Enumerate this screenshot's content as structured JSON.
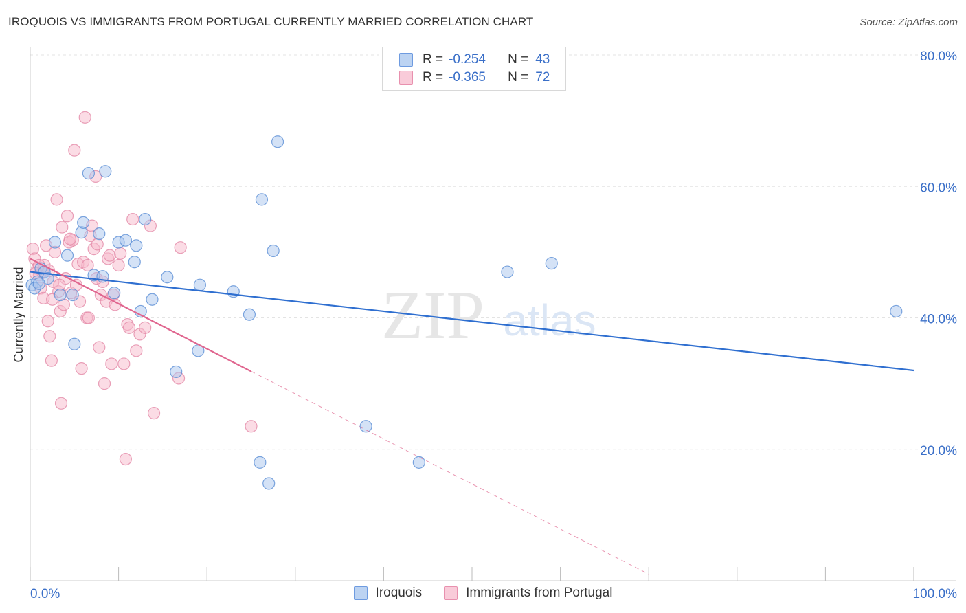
{
  "title": "IROQUOIS VS IMMIGRANTS FROM PORTUGAL CURRENTLY MARRIED CORRELATION CHART",
  "source": "Source: ZipAtlas.com",
  "watermark": {
    "zip": "ZIP",
    "atlas": "atlas"
  },
  "colors": {
    "blue_fill": "#a9c6ee",
    "blue_stroke": "#5b8fd6",
    "blue_line": "#2f6fd0",
    "pink_fill": "#f7b9cc",
    "pink_stroke": "#e48aa8",
    "pink_line": "#e0668f",
    "axis_label": "#3a6fc8",
    "grid": "#e3e3e3"
  },
  "legend": {
    "iroquois": {
      "r_label": "R =",
      "r_value": "-0.254",
      "n_label": "N =",
      "n_value": "43"
    },
    "portugal": {
      "r_label": "R =",
      "r_value": "-0.365",
      "n_label": "N =",
      "n_value": "72"
    }
  },
  "chart_data": {
    "type": "scatter",
    "title": "IROQUOIS VS IMMIGRANTS FROM PORTUGAL CURRENTLY MARRIED CORRELATION CHART",
    "xlabel": "",
    "ylabel": "Currently Married",
    "xlim": [
      0,
      100
    ],
    "ylim": [
      0,
      80
    ],
    "x_tick_labels": [
      "0.0%",
      "100.0%"
    ],
    "y_ticks": [
      20,
      40,
      60,
      80
    ],
    "y_tick_labels": [
      "20.0%",
      "40.0%",
      "60.0%",
      "80.0%"
    ],
    "grid": true,
    "legend_position": "top-center",
    "series": [
      {
        "name": "Iroquois",
        "color": "blue",
        "r": -0.254,
        "n": 43,
        "trend": {
          "x0": 0,
          "y0": 47.0,
          "x1": 100,
          "y1": 32.0,
          "solid_to": 100
        },
        "points": [
          [
            0.2,
            45.0
          ],
          [
            0.8,
            45.5
          ],
          [
            1.2,
            47.5
          ],
          [
            1.6,
            47.0
          ],
          [
            2.0,
            46.0
          ],
          [
            2.8,
            51.5
          ],
          [
            3.4,
            43.5
          ],
          [
            4.2,
            49.5
          ],
          [
            4.8,
            43.5
          ],
          [
            5.0,
            36.0
          ],
          [
            5.8,
            53.0
          ],
          [
            6.0,
            54.5
          ],
          [
            6.6,
            62.0
          ],
          [
            7.2,
            46.5
          ],
          [
            7.8,
            52.8
          ],
          [
            8.2,
            46.3
          ],
          [
            8.5,
            62.3
          ],
          [
            9.5,
            43.8
          ],
          [
            10.0,
            51.5
          ],
          [
            10.8,
            51.8
          ],
          [
            11.8,
            48.5
          ],
          [
            12.0,
            51.0
          ],
          [
            12.5,
            41.0
          ],
          [
            13.0,
            55.0
          ],
          [
            13.8,
            42.8
          ],
          [
            15.5,
            46.2
          ],
          [
            16.5,
            31.8
          ],
          [
            19.0,
            35.0
          ],
          [
            19.2,
            45.0
          ],
          [
            23.0,
            44.0
          ],
          [
            24.8,
            40.5
          ],
          [
            26.2,
            58.0
          ],
          [
            27.5,
            50.2
          ],
          [
            28.0,
            66.8
          ],
          [
            26.0,
            18.0
          ],
          [
            27.0,
            14.8
          ],
          [
            38.0,
            23.5
          ],
          [
            44.0,
            18.0
          ],
          [
            54.0,
            47.0
          ],
          [
            59.0,
            48.3
          ],
          [
            98.0,
            41.0
          ],
          [
            0.5,
            44.5
          ],
          [
            1.0,
            45.2
          ]
        ]
      },
      {
        "name": "Immigrants from Portugal",
        "color": "pink",
        "r": -0.365,
        "n": 72,
        "trend": {
          "x0": 0,
          "y0": 49.0,
          "x1": 70,
          "y1": 1.0,
          "solid_to": 25
        },
        "points": [
          [
            0.3,
            50.5
          ],
          [
            0.5,
            49.0
          ],
          [
            0.8,
            47.5
          ],
          [
            1.0,
            46.5
          ],
          [
            1.2,
            44.5
          ],
          [
            1.4,
            47.0
          ],
          [
            1.6,
            48.0
          ],
          [
            1.8,
            51.0
          ],
          [
            2.0,
            39.5
          ],
          [
            2.2,
            37.2
          ],
          [
            2.4,
            33.5
          ],
          [
            2.6,
            45.5
          ],
          [
            2.8,
            50.0
          ],
          [
            3.0,
            58.0
          ],
          [
            3.2,
            44.0
          ],
          [
            3.4,
            41.0
          ],
          [
            3.5,
            27.0
          ],
          [
            3.6,
            53.8
          ],
          [
            3.8,
            42.0
          ],
          [
            4.0,
            46.0
          ],
          [
            4.2,
            55.5
          ],
          [
            4.4,
            51.5
          ],
          [
            4.6,
            43.8
          ],
          [
            4.8,
            51.8
          ],
          [
            5.0,
            65.5
          ],
          [
            5.2,
            45.0
          ],
          [
            5.4,
            48.2
          ],
          [
            5.6,
            42.5
          ],
          [
            5.8,
            32.3
          ],
          [
            6.0,
            48.5
          ],
          [
            6.2,
            70.5
          ],
          [
            6.4,
            40.0
          ],
          [
            6.6,
            40.0
          ],
          [
            6.8,
            52.5
          ],
          [
            7.0,
            54.0
          ],
          [
            7.2,
            50.5
          ],
          [
            7.4,
            61.5
          ],
          [
            7.6,
            51.2
          ],
          [
            7.8,
            35.5
          ],
          [
            8.0,
            43.5
          ],
          [
            8.2,
            45.5
          ],
          [
            8.4,
            30.0
          ],
          [
            8.6,
            42.5
          ],
          [
            8.8,
            49.0
          ],
          [
            9.0,
            49.5
          ],
          [
            9.4,
            43.5
          ],
          [
            9.6,
            42.0
          ],
          [
            10.0,
            48.0
          ],
          [
            10.2,
            49.8
          ],
          [
            10.6,
            33.0
          ],
          [
            11.0,
            39.0
          ],
          [
            11.2,
            38.5
          ],
          [
            11.6,
            55.0
          ],
          [
            12.0,
            35.0
          ],
          [
            12.4,
            37.5
          ],
          [
            13.0,
            38.5
          ],
          [
            13.6,
            54.0
          ],
          [
            14.0,
            25.5
          ],
          [
            10.8,
            18.5
          ],
          [
            16.8,
            30.8
          ],
          [
            17.0,
            50.7
          ],
          [
            25.0,
            23.5
          ],
          [
            1.0,
            48.0
          ],
          [
            1.5,
            43.0
          ],
          [
            2.5,
            42.8
          ],
          [
            6.5,
            48.0
          ],
          [
            4.5,
            52.0
          ],
          [
            9.2,
            33.0
          ],
          [
            0.6,
            46.8
          ],
          [
            3.3,
            45.0
          ],
          [
            7.5,
            46.0
          ],
          [
            2.1,
            47.2
          ]
        ]
      }
    ]
  },
  "bottom_legend": {
    "iroquois": "Iroquois",
    "portugal": "Immigrants from Portugal"
  }
}
